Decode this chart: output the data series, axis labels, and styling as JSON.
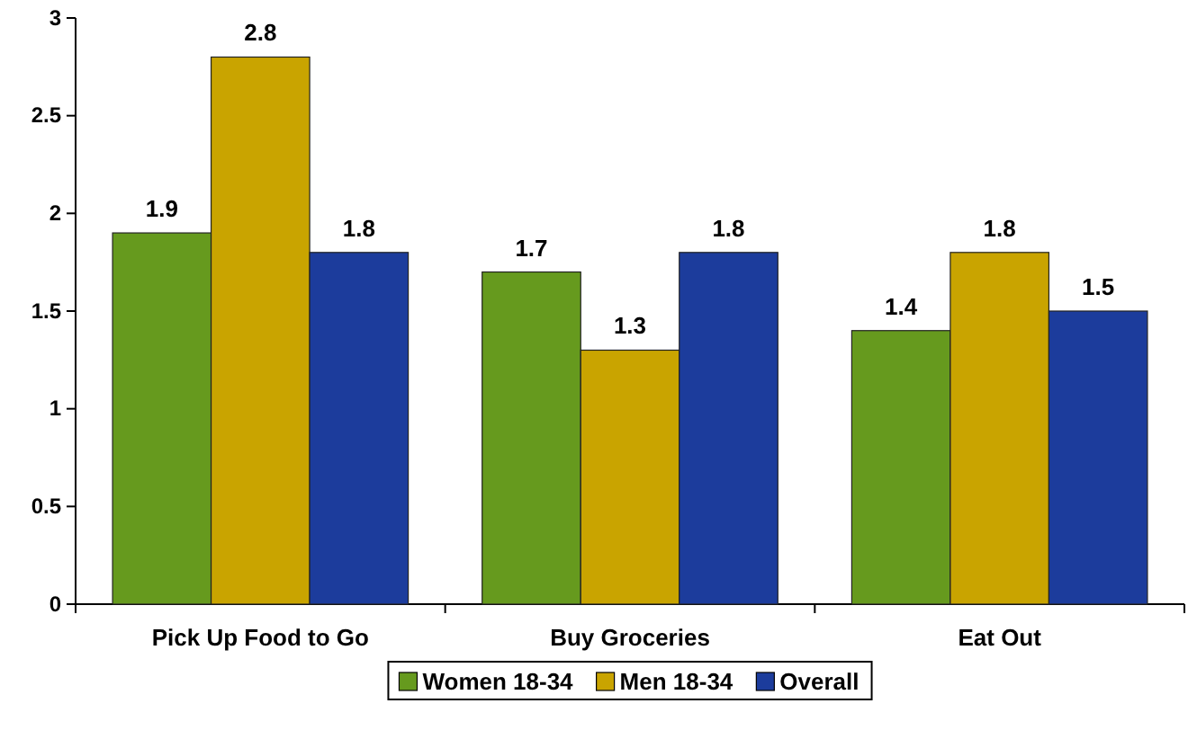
{
  "chart_data": {
    "type": "bar",
    "categories": [
      "Pick Up Food to Go",
      "Buy Groceries",
      "Eat Out"
    ],
    "series": [
      {
        "name": "Women 18-34",
        "color": "#669a1e",
        "values": [
          1.9,
          1.7,
          1.4
        ]
      },
      {
        "name": "Men 18-34",
        "color": "#c9a400",
        "values": [
          2.8,
          1.3,
          1.8
        ]
      },
      {
        "name": "Overall",
        "color": "#1c3c9c",
        "values": [
          1.8,
          1.8,
          1.5
        ]
      }
    ],
    "ylim": [
      0,
      3
    ],
    "yticks": [
      0,
      0.5,
      1,
      1.5,
      2,
      2.5,
      3
    ],
    "grid": false,
    "legend": "bottom",
    "data_labels": true
  }
}
